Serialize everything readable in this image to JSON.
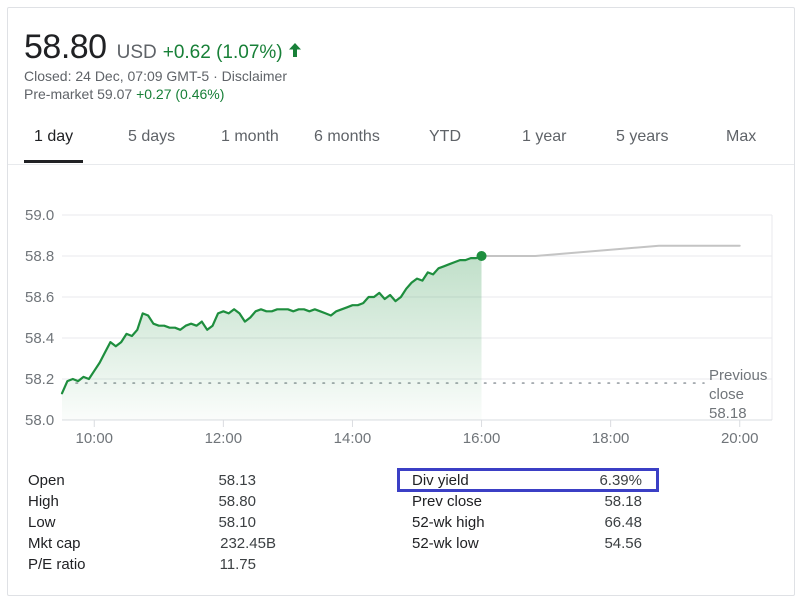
{
  "quote": {
    "price": "58.80",
    "currency": "USD",
    "change": "+0.62 (1.07%)",
    "closed_line": "Closed: 24 Dec, 07:09 GMT-5 · Disclaimer",
    "premarket_label": "Pre-market 59.07 ",
    "premarket_change": "+0.27 (0.46%)",
    "accent_color": "#188038"
  },
  "tabs": [
    {
      "label": "1 day",
      "active": true
    },
    {
      "label": "5 days"
    },
    {
      "label": "1 month"
    },
    {
      "label": "6 months"
    },
    {
      "label": "YTD"
    },
    {
      "label": "1 year"
    },
    {
      "label": "5 years"
    },
    {
      "label": "Max"
    }
  ],
  "chart_data": {
    "type": "line",
    "xlim": [
      "09:30",
      "20:30"
    ],
    "ylim": [
      58.0,
      59.0
    ],
    "y_ticks": [
      "59.0",
      "58.8",
      "58.6",
      "58.4",
      "58.2",
      "58.0"
    ],
    "x_ticks": [
      "10:00",
      "12:00",
      "14:00",
      "16:00",
      "18:00",
      "20:00"
    ],
    "grid": true,
    "previous_close": {
      "value": 58.18,
      "label_lines": [
        "Previous",
        "close",
        "58.18"
      ]
    },
    "series": [
      {
        "line_color": "#1e8e3e",
        "fill": true,
        "points": [
          [
            "09:30",
            58.13
          ],
          [
            "09:35",
            58.19
          ],
          [
            "09:40",
            58.2
          ],
          [
            "09:45",
            58.19
          ],
          [
            "09:50",
            58.21
          ],
          [
            "09:55",
            58.2
          ],
          [
            "10:00",
            58.24
          ],
          [
            "10:05",
            58.28
          ],
          [
            "10:10",
            58.33
          ],
          [
            "10:15",
            58.38
          ],
          [
            "10:20",
            58.36
          ],
          [
            "10:25",
            58.38
          ],
          [
            "10:30",
            58.42
          ],
          [
            "10:35",
            58.41
          ],
          [
            "10:40",
            58.44
          ],
          [
            "10:45",
            58.52
          ],
          [
            "10:50",
            58.51
          ],
          [
            "10:55",
            58.47
          ],
          [
            "11:00",
            58.46
          ],
          [
            "11:05",
            58.46
          ],
          [
            "11:10",
            58.45
          ],
          [
            "11:15",
            58.45
          ],
          [
            "11:20",
            58.44
          ],
          [
            "11:25",
            58.46
          ],
          [
            "11:30",
            58.47
          ],
          [
            "11:35",
            58.46
          ],
          [
            "11:40",
            58.48
          ],
          [
            "11:45",
            58.44
          ],
          [
            "11:50",
            58.46
          ],
          [
            "11:55",
            58.52
          ],
          [
            "12:00",
            58.53
          ],
          [
            "12:05",
            58.52
          ],
          [
            "12:10",
            58.54
          ],
          [
            "12:15",
            58.52
          ],
          [
            "12:20",
            58.48
          ],
          [
            "12:25",
            58.5
          ],
          [
            "12:30",
            58.53
          ],
          [
            "12:35",
            58.54
          ],
          [
            "12:40",
            58.53
          ],
          [
            "12:45",
            58.53
          ],
          [
            "12:50",
            58.54
          ],
          [
            "12:55",
            58.54
          ],
          [
            "13:00",
            58.54
          ],
          [
            "13:05",
            58.53
          ],
          [
            "13:10",
            58.54
          ],
          [
            "13:15",
            58.54
          ],
          [
            "13:20",
            58.53
          ],
          [
            "13:25",
            58.54
          ],
          [
            "13:30",
            58.53
          ],
          [
            "13:35",
            58.52
          ],
          [
            "13:40",
            58.51
          ],
          [
            "13:45",
            58.53
          ],
          [
            "13:50",
            58.54
          ],
          [
            "13:55",
            58.55
          ],
          [
            "14:00",
            58.56
          ],
          [
            "14:05",
            58.56
          ],
          [
            "14:10",
            58.57
          ],
          [
            "14:15",
            58.6
          ],
          [
            "14:20",
            58.6
          ],
          [
            "14:25",
            58.62
          ],
          [
            "14:30",
            58.59
          ],
          [
            "14:35",
            58.61
          ],
          [
            "14:40",
            58.58
          ],
          [
            "14:45",
            58.6
          ],
          [
            "14:50",
            58.64
          ],
          [
            "14:55",
            58.67
          ],
          [
            "15:00",
            58.69
          ],
          [
            "15:05",
            58.68
          ],
          [
            "15:10",
            58.72
          ],
          [
            "15:15",
            58.71
          ],
          [
            "15:20",
            58.74
          ],
          [
            "15:25",
            58.75
          ],
          [
            "15:30",
            58.76
          ],
          [
            "15:35",
            58.77
          ],
          [
            "15:40",
            58.78
          ],
          [
            "15:45",
            58.78
          ],
          [
            "15:50",
            58.79
          ],
          [
            "15:55",
            58.79
          ],
          [
            "16:00",
            58.8
          ]
        ]
      },
      {
        "line_color": "#c4c4c4",
        "fill": false,
        "points": [
          [
            "16:00",
            58.8
          ],
          [
            "16:50",
            58.8
          ],
          [
            "18:45",
            58.85
          ],
          [
            "20:00",
            58.85
          ]
        ]
      }
    ]
  },
  "stats": {
    "left": [
      {
        "label": "Open",
        "value": "58.13"
      },
      {
        "label": "High",
        "value": "58.80"
      },
      {
        "label": "Low",
        "value": "58.10"
      },
      {
        "label": "Mkt cap",
        "value": "232.45B"
      },
      {
        "label": "P/E ratio",
        "value": "11.75"
      }
    ],
    "right": [
      {
        "label": "Div yield",
        "value": "6.39%",
        "highlighted": true
      },
      {
        "label": "Prev close",
        "value": "58.18"
      },
      {
        "label": "52-wk high",
        "value": "66.48"
      },
      {
        "label": "52-wk low",
        "value": "54.56"
      }
    ],
    "highlight_color": "#3b3fc5"
  }
}
